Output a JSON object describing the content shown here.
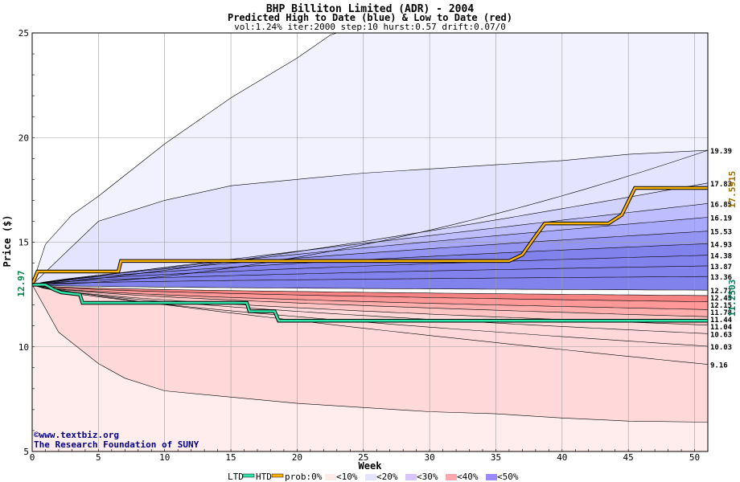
{
  "chart_data": {
    "type": "area",
    "title": "BHP Billiton Limited (ADR) - 2004",
    "subtitle": "Predicted High to Date (blue) &  Low to Date (red)",
    "params": "vol:1.24% iter:2000 step:10 hurst:0.57 drift:0.07/0",
    "xlabel": "Week",
    "ylabel": "Price ($)",
    "xlim": [
      0,
      51
    ],
    "ylim": [
      5,
      25
    ],
    "xticks": [
      0,
      5,
      10,
      15,
      20,
      25,
      30,
      35,
      40,
      45,
      50
    ],
    "yticks": [
      5,
      10,
      15,
      20,
      25
    ],
    "grid": true,
    "start_price": 12.97,
    "start_price_label": "12.97",
    "high_value_label": "17.5915",
    "low_value_label": "11.2503",
    "colors": {
      "high_path": "#ffb400",
      "low_path": "#2ee6a8",
      "high_bands": [
        "#f2f2ff",
        "#e4e4ff",
        "#d2d2ff",
        "#bebeff",
        "#a9a9fb",
        "#9494f3",
        "#8282ec"
      ],
      "low_bands": [
        "#ffecec",
        "#ffd9d9",
        "#ffc4c4",
        "#ffadad",
        "#ff9999",
        "#f58383"
      ]
    },
    "high_quantiles": [
      {
        "label": "19.39",
        "end": 19.39,
        "k": 1.7
      },
      {
        "label": "17.83",
        "end": 17.83,
        "k": 1.2
      },
      {
        "label": "16.85",
        "end": 16.85,
        "k": 0.95
      },
      {
        "label": "16.19",
        "end": 16.19,
        "k": 0.85
      },
      {
        "label": "15.53",
        "end": 15.53,
        "k": 0.75
      },
      {
        "label": "14.93",
        "end": 14.93,
        "k": 0.7
      },
      {
        "label": "14.38",
        "end": 14.38,
        "k": 0.65
      },
      {
        "label": "13.87",
        "end": 13.87,
        "k": 0.6
      },
      {
        "label": "13.36",
        "end": 13.36,
        "k": 0.55
      },
      {
        "label": "12.71",
        "end": 12.71,
        "k": 0.5
      }
    ],
    "low_quantiles": [
      {
        "label": "12.45",
        "end": 12.45,
        "k": 0.5
      },
      {
        "label": "12.15",
        "end": 12.15,
        "k": 0.55
      },
      {
        "label": "11.78",
        "end": 11.78,
        "k": 0.55
      },
      {
        "label": "11.44",
        "end": 11.44,
        "k": 0.6
      },
      {
        "label": "11.04",
        "end": 11.04,
        "k": 0.6
      },
      {
        "label": "10.63",
        "end": 10.63,
        "k": 0.65
      },
      {
        "label": "10.03",
        "end": 10.03,
        "k": 0.7
      },
      {
        "label": "9.16",
        "end": 9.16,
        "k": 0.85
      }
    ],
    "outer_upper": {
      "points": [
        [
          0,
          12.97
        ],
        [
          1,
          14.9
        ],
        [
          3,
          16.3
        ],
        [
          5,
          17.2
        ],
        [
          10,
          19.7
        ],
        [
          15,
          21.9
        ],
        [
          20,
          23.8
        ],
        [
          22.5,
          24.9
        ],
        [
          23,
          25
        ]
      ]
    },
    "outer_upper_band": {
      "points": [
        [
          0,
          12.97
        ],
        [
          5,
          16.0
        ],
        [
          10,
          17.0
        ],
        [
          15,
          17.7
        ],
        [
          20,
          18.0
        ],
        [
          25,
          18.3
        ],
        [
          30,
          18.5
        ],
        [
          35,
          18.7
        ],
        [
          40,
          18.9
        ],
        [
          45,
          19.2
        ],
        [
          51,
          19.39
        ]
      ]
    },
    "outer_lower": {
      "points": [
        [
          0,
          12.97
        ],
        [
          2,
          10.7
        ],
        [
          5,
          9.2
        ],
        [
          7,
          8.5
        ],
        [
          10,
          7.9
        ],
        [
          15,
          7.6
        ],
        [
          20,
          7.3
        ],
        [
          25,
          7.1
        ],
        [
          30,
          6.9
        ],
        [
          35,
          6.8
        ],
        [
          40,
          6.6
        ],
        [
          45,
          6.45
        ],
        [
          51,
          6.4
        ]
      ]
    },
    "high_path": {
      "points": [
        [
          0,
          12.97
        ],
        [
          0.4,
          13.6
        ],
        [
          6.5,
          13.6
        ],
        [
          6.7,
          14.1
        ],
        [
          36,
          14.1
        ],
        [
          37,
          14.4
        ],
        [
          38,
          15.3
        ],
        [
          38.7,
          15.9
        ],
        [
          43.5,
          15.9
        ],
        [
          44.5,
          16.3
        ],
        [
          45.5,
          17.59
        ],
        [
          51,
          17.59
        ]
      ]
    },
    "low_path": {
      "points": [
        [
          0,
          12.97
        ],
        [
          1.0,
          12.97
        ],
        [
          1.6,
          12.75
        ],
        [
          2.2,
          12.6
        ],
        [
          3.6,
          12.5
        ],
        [
          3.8,
          12.1
        ],
        [
          16.2,
          12.1
        ],
        [
          16.4,
          11.7
        ],
        [
          18.3,
          11.7
        ],
        [
          18.6,
          11.25
        ],
        [
          51,
          11.25
        ]
      ]
    },
    "watermark": {
      "line1": "©www.textbiz.org",
      "line2": "The Research Foundation of SUNY"
    },
    "legend": {
      "ltd": "LTD",
      "htd": "HTD",
      "prob": "prob:0%",
      "bins": [
        "<10%",
        "<20%",
        "<30%",
        "<40%",
        "<50%"
      ]
    }
  }
}
